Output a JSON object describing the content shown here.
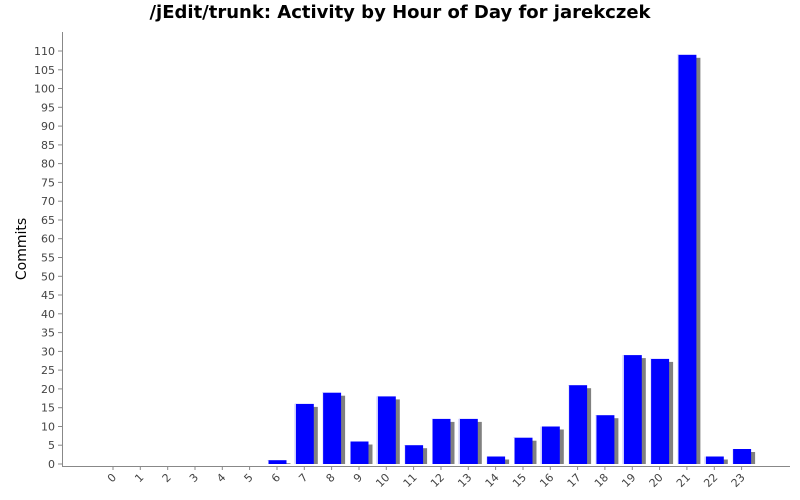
{
  "chart_data": {
    "type": "bar",
    "title": "/jEdit/trunk: Activity by Hour of Day for jarekczek",
    "xlabel": "",
    "ylabel": "Commits",
    "categories": [
      "0",
      "1",
      "2",
      "3",
      "4",
      "5",
      "6",
      "7",
      "8",
      "9",
      "10",
      "11",
      "12",
      "13",
      "14",
      "15",
      "16",
      "17",
      "18",
      "19",
      "20",
      "21",
      "22",
      "23"
    ],
    "values": [
      0,
      0,
      0,
      0,
      0,
      0,
      1,
      16,
      19,
      6,
      18,
      5,
      12,
      12,
      2,
      7,
      10,
      21,
      13,
      29,
      28,
      109,
      2,
      4
    ],
    "ylim": [
      0,
      110
    ],
    "yticks": [
      0,
      5,
      10,
      15,
      20,
      25,
      30,
      35,
      40,
      45,
      50,
      55,
      60,
      65,
      70,
      75,
      80,
      85,
      90,
      95,
      100,
      105,
      110
    ],
    "grid": false,
    "legend": "none",
    "bar_color": "#0000ff",
    "shadow_color": "#808080"
  }
}
